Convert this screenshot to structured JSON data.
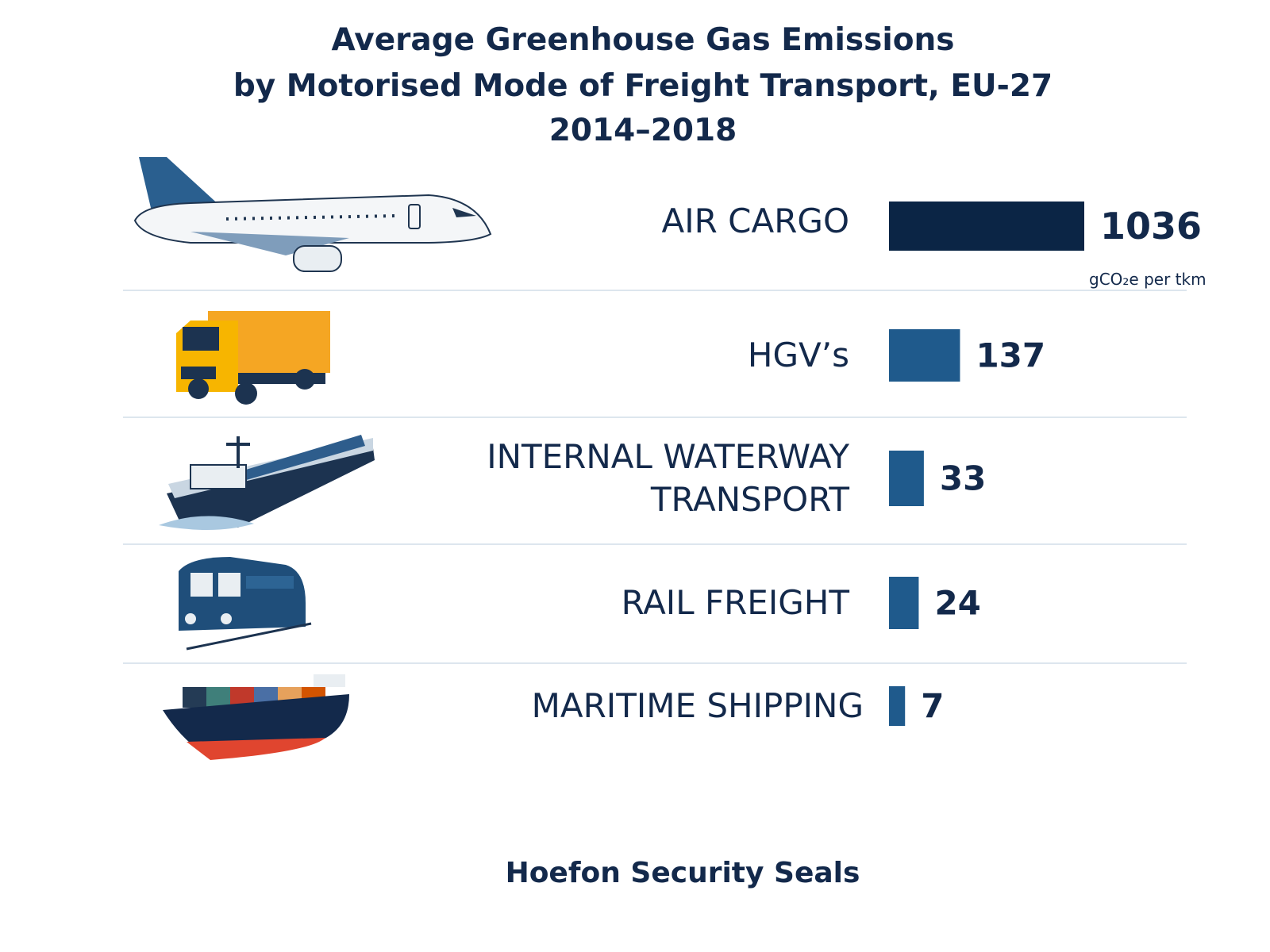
{
  "chart_data": {
    "type": "bar",
    "title": [
      "Average Greenhouse Gas Emissions",
      "by Motorised Mode of Freight Transport, EU-27",
      "2014–2018"
    ],
    "unit_label": "gCO₂e per tkm",
    "categories": [
      "AIR CARGO",
      "HGV’s",
      "INTERNAL WATERWAY TRANSPORT",
      "RAIL FREIGHT",
      "MARITIME SHIPPING"
    ],
    "values": [
      1036,
      137,
      33,
      24,
      7
    ],
    "colors": [
      "#0b2545",
      "#1f5a8c",
      "#1f5a8c",
      "#1f5a8c",
      "#1f5a8c"
    ],
    "x_scale": "sqrt",
    "footer": "Hoefon Security Seals"
  }
}
